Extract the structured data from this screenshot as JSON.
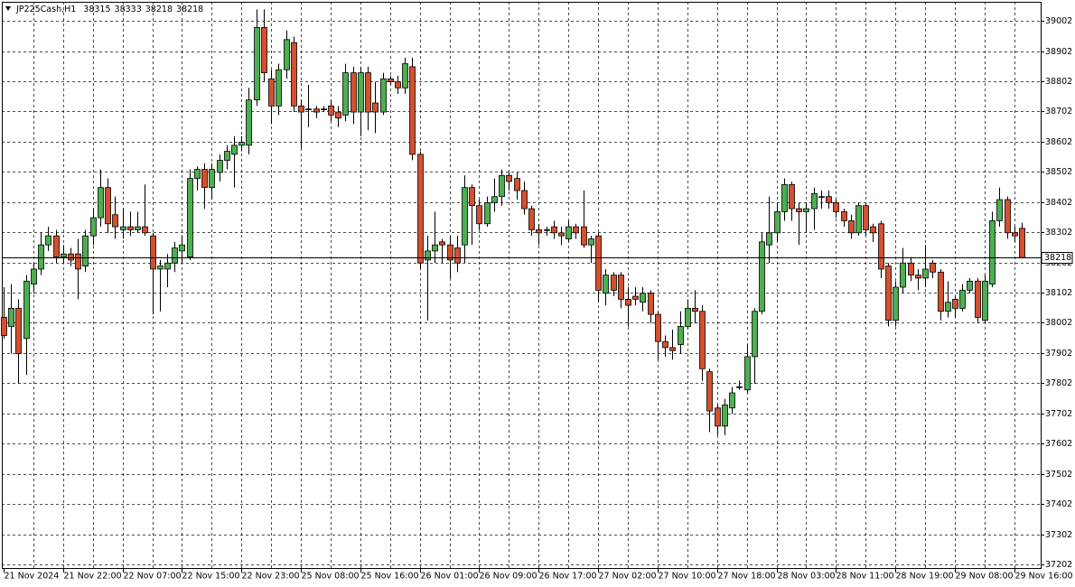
{
  "chart_data": {
    "type": "candlestick",
    "title": "JP225Cash,H1",
    "header_ohlc": [
      38315,
      38333,
      38218,
      38218
    ],
    "up_color": "#4caf50",
    "down_color": "#d4502e",
    "grid": true,
    "ylim": [
      37187,
      39065
    ],
    "yticks": [
      37202,
      37302,
      37402,
      37502,
      37602,
      37702,
      37802,
      37902,
      38002,
      38102,
      38202,
      38302,
      38402,
      38502,
      38602,
      38702,
      38802,
      38902,
      39002
    ],
    "categories": [
      "21 Nov 2024",
      null,
      null,
      null,
      null,
      null,
      null,
      null,
      "21 Nov 22:00",
      null,
      null,
      null,
      null,
      null,
      null,
      null,
      "22 Nov 07:00",
      null,
      null,
      null,
      null,
      null,
      null,
      null,
      "22 Nov 15:00",
      null,
      null,
      null,
      null,
      null,
      null,
      null,
      "22 Nov 23:00",
      null,
      null,
      null,
      null,
      null,
      null,
      null,
      "25 Nov 08:00",
      null,
      null,
      null,
      null,
      null,
      null,
      null,
      "25 Nov 16:00",
      null,
      null,
      null,
      null,
      null,
      null,
      null,
      "26 Nov 01:00",
      null,
      null,
      null,
      null,
      null,
      null,
      null,
      "26 Nov 09:00",
      null,
      null,
      null,
      null,
      null,
      null,
      null,
      "26 Nov 17:00",
      null,
      null,
      null,
      null,
      null,
      null,
      null,
      "27 Nov 02:00",
      null,
      null,
      null,
      null,
      null,
      null,
      null,
      "27 Nov 10:00",
      null,
      null,
      null,
      null,
      null,
      null,
      null,
      "27 Nov 18:00",
      null,
      null,
      null,
      null,
      null,
      null,
      null,
      "28 Nov 03:00",
      null,
      null,
      null,
      null,
      null,
      null,
      null,
      "28 Nov 11:00",
      null,
      null,
      null,
      null,
      null,
      null,
      null,
      "28 Nov 19:00",
      null,
      null,
      null,
      null,
      null,
      null,
      null,
      "29 Nov 08:00",
      null,
      null,
      null,
      null,
      null,
      null,
      null,
      "29 Nov 16:00",
      null
    ],
    "ohlc": [
      [
        38020,
        38120,
        37950,
        37960
      ],
      [
        37990,
        38130,
        37900,
        38050
      ],
      [
        38050,
        38080,
        37800,
        37900
      ],
      [
        37950,
        38160,
        37830,
        38140
      ],
      [
        38130,
        38200,
        38100,
        38180
      ],
      [
        38180,
        38300,
        38160,
        38260
      ],
      [
        38260,
        38320,
        38240,
        38290
      ],
      [
        38290,
        38310,
        38200,
        38220
      ],
      [
        38220,
        38260,
        38200,
        38230
      ],
      [
        38230,
        38250,
        38190,
        38210
      ],
      [
        38230,
        38280,
        38080,
        38180
      ],
      [
        38190,
        38310,
        38170,
        38290
      ],
      [
        38290,
        38380,
        38260,
        38350
      ],
      [
        38350,
        38510,
        38320,
        38450
      ],
      [
        38450,
        38480,
        38300,
        38330
      ],
      [
        38360,
        38420,
        38280,
        38320
      ],
      [
        38310,
        38380,
        38280,
        38320
      ],
      [
        38320,
        38370,
        38290,
        38310
      ],
      [
        38310,
        38370,
        38300,
        38320
      ],
      [
        38320,
        38460,
        38290,
        38300
      ],
      [
        38290,
        38300,
        38030,
        38180
      ],
      [
        38180,
        38210,
        38040,
        38190
      ],
      [
        38180,
        38230,
        38120,
        38200
      ],
      [
        38200,
        38270,
        38170,
        38250
      ],
      [
        38240,
        38290,
        38200,
        38260
      ],
      [
        38220,
        38510,
        38210,
        38480
      ],
      [
        38480,
        38520,
        38440,
        38510
      ],
      [
        38510,
        38530,
        38380,
        38450
      ],
      [
        38450,
        38530,
        38410,
        38510
      ],
      [
        38500,
        38560,
        38470,
        38540
      ],
      [
        38540,
        38590,
        38510,
        38570
      ],
      [
        38560,
        38620,
        38450,
        38590
      ],
      [
        38590,
        38620,
        38570,
        38600
      ],
      [
        38590,
        38780,
        38560,
        38740
      ],
      [
        38740,
        39040,
        38720,
        38980
      ],
      [
        38980,
        39040,
        38800,
        38830
      ],
      [
        38810,
        38840,
        38660,
        38720
      ],
      [
        38720,
        38860,
        38690,
        38840
      ],
      [
        38840,
        38970,
        38810,
        38940
      ],
      [
        38930,
        38950,
        38700,
        38720
      ],
      [
        38720,
        38740,
        38580,
        38700
      ],
      [
        38710,
        38790,
        38650,
        38710
      ],
      [
        38710,
        38720,
        38680,
        38700
      ],
      [
        38710,
        38720,
        38700,
        38710
      ],
      [
        38720,
        38740,
        38670,
        38690
      ],
      [
        38700,
        38720,
        38650,
        38680
      ],
      [
        38690,
        38860,
        38670,
        38830
      ],
      [
        38830,
        38850,
        38660,
        38700
      ],
      [
        38700,
        38850,
        38620,
        38830
      ],
      [
        38830,
        38850,
        38640,
        38700
      ],
      [
        38730,
        38800,
        38630,
        38700
      ],
      [
        38700,
        38830,
        38690,
        38810
      ],
      [
        38810,
        38820,
        38790,
        38800
      ],
      [
        38800,
        38820,
        38760,
        38780
      ],
      [
        38780,
        38880,
        38760,
        38860
      ],
      [
        38850,
        38880,
        38540,
        38560
      ],
      [
        38560,
        38570,
        38180,
        38200
      ],
      [
        38210,
        38290,
        38010,
        38240
      ],
      [
        38240,
        38370,
        38200,
        38260
      ],
      [
        38270,
        38280,
        38200,
        38260
      ],
      [
        38260,
        38290,
        38150,
        38210
      ],
      [
        38250,
        38290,
        38170,
        38200
      ],
      [
        38260,
        38490,
        38200,
        38450
      ],
      [
        38450,
        38460,
        38260,
        38390
      ],
      [
        38390,
        38410,
        38310,
        38330
      ],
      [
        38330,
        38420,
        38320,
        38400
      ],
      [
        38400,
        38480,
        38370,
        38420
      ],
      [
        38420,
        38510,
        38390,
        38490
      ],
      [
        38490,
        38500,
        38440,
        38470
      ],
      [
        38480,
        38500,
        38410,
        38440
      ],
      [
        38440,
        38470,
        38360,
        38380
      ],
      [
        38380,
        38390,
        38290,
        38310
      ],
      [
        38310,
        38330,
        38260,
        38300
      ],
      [
        38310,
        38320,
        38290,
        38310
      ],
      [
        38320,
        38340,
        38280,
        38300
      ],
      [
        38300,
        38320,
        38260,
        38290
      ],
      [
        38280,
        38340,
        38270,
        38320
      ],
      [
        38320,
        38330,
        38280,
        38300
      ],
      [
        38320,
        38440,
        38250,
        38260
      ],
      [
        38260,
        38290,
        38200,
        38280
      ],
      [
        38290,
        38300,
        38070,
        38110
      ],
      [
        38100,
        38180,
        38060,
        38160
      ],
      [
        38160,
        38170,
        38090,
        38110
      ],
      [
        38160,
        38170,
        38050,
        38080
      ],
      [
        38080,
        38120,
        37990,
        38060
      ],
      [
        38090,
        38120,
        38060,
        38080
      ],
      [
        38070,
        38120,
        38040,
        38100
      ],
      [
        38100,
        38110,
        38000,
        38030
      ],
      [
        38030,
        38040,
        37880,
        37940
      ],
      [
        37940,
        37960,
        37890,
        37920
      ],
      [
        37920,
        37980,
        37880,
        37910
      ],
      [
        37930,
        38040,
        37900,
        37990
      ],
      [
        37990,
        38080,
        37980,
        38050
      ],
      [
        38050,
        38110,
        38000,
        38040
      ],
      [
        38040,
        38060,
        37810,
        37850
      ],
      [
        37840,
        37850,
        37640,
        37710
      ],
      [
        37720,
        37730,
        37630,
        37660
      ],
      [
        37660,
        37750,
        37630,
        37730
      ],
      [
        37720,
        37790,
        37700,
        37770
      ],
      [
        37790,
        37810,
        37780,
        37790
      ],
      [
        37780,
        37930,
        37770,
        37890
      ],
      [
        37890,
        38050,
        37800,
        38040
      ],
      [
        38040,
        38300,
        38030,
        38270
      ],
      [
        38260,
        38420,
        38200,
        38300
      ],
      [
        38300,
        38400,
        38270,
        38370
      ],
      [
        38370,
        38480,
        38340,
        38460
      ],
      [
        38460,
        38470,
        38340,
        38380
      ],
      [
        38380,
        38400,
        38260,
        38370
      ],
      [
        38370,
        38400,
        38300,
        38380
      ],
      [
        38380,
        38450,
        38310,
        38430
      ],
      [
        38420,
        38440,
        38380,
        38420
      ],
      [
        38420,
        38440,
        38380,
        38400
      ],
      [
        38400,
        38410,
        38350,
        38370
      ],
      [
        38370,
        38380,
        38320,
        38340
      ],
      [
        38340,
        38360,
        38280,
        38300
      ],
      [
        38300,
        38400,
        38290,
        38390
      ],
      [
        38390,
        38400,
        38290,
        38310
      ],
      [
        38320,
        38330,
        38270,
        38300
      ],
      [
        38330,
        38340,
        38150,
        38180
      ],
      [
        38190,
        38200,
        37990,
        38010
      ],
      [
        38010,
        38140,
        37990,
        38120
      ],
      [
        38120,
        38250,
        38100,
        38200
      ],
      [
        38200,
        38220,
        38140,
        38160
      ],
      [
        38160,
        38180,
        38110,
        38150
      ],
      [
        38150,
        38260,
        38120,
        38180
      ],
      [
        38200,
        38210,
        38150,
        38170
      ],
      [
        38170,
        38180,
        38010,
        38040
      ],
      [
        38040,
        38140,
        38020,
        38070
      ],
      [
        38080,
        38090,
        38020,
        38050
      ],
      [
        38050,
        38130,
        38040,
        38110
      ],
      [
        38110,
        38150,
        38100,
        38140
      ],
      [
        38140,
        38150,
        38000,
        38020
      ],
      [
        38010,
        38160,
        38000,
        38140
      ],
      [
        38130,
        38370,
        38120,
        38340
      ],
      [
        38340,
        38450,
        38320,
        38410
      ],
      [
        38410,
        38420,
        38280,
        38300
      ],
      [
        38300,
        38320,
        38270,
        38290
      ],
      [
        38315,
        38333,
        38218,
        38218
      ]
    ]
  }
}
